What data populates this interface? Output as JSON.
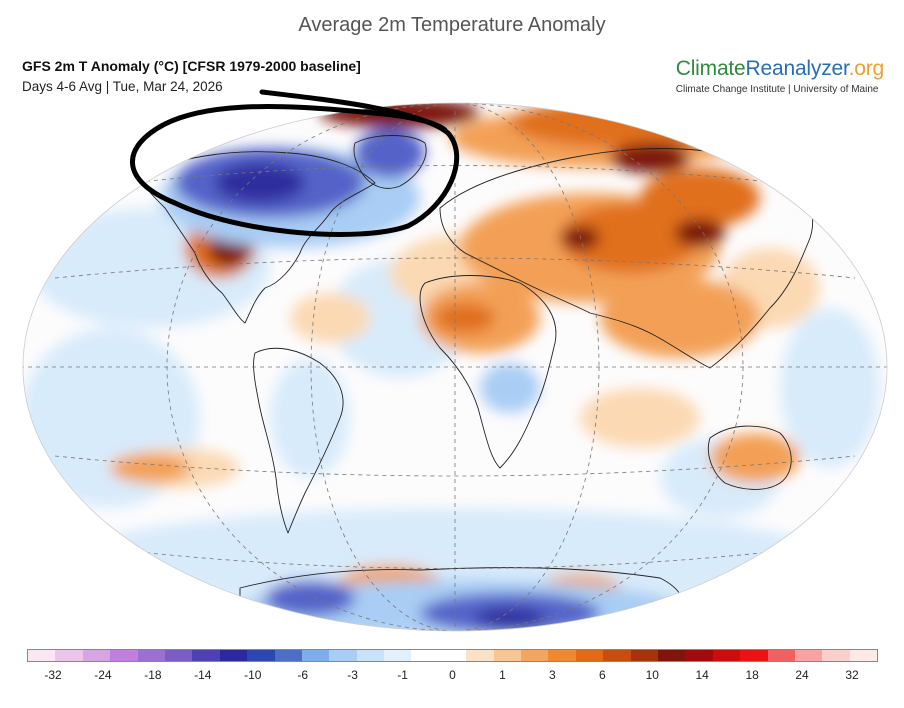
{
  "title": "Average 2m Temperature Anomaly",
  "subtitle_line1": "GFS 2m T Anomaly (°C) [CFSR 1979-2000 baseline]",
  "subtitle_line2": "Days 4-6 Avg | Tue, Mar 24, 2026",
  "logo": {
    "part1": "Climate",
    "part2": "Reanalyzer",
    "part3": ".org",
    "subtitle": "Climate Change Institute | University of Maine",
    "color_part1": "#2e8b3e",
    "color_part2": "#2a6db5",
    "color_part3": "#f0a030"
  },
  "annotation": {
    "type": "hand-drawn ellipse",
    "encircles": "North America / Canada / Greenland cold anomaly",
    "color": "#000000"
  },
  "colorbar": {
    "colors": [
      "#fbe6f3",
      "#ecc6ea",
      "#d7a5e3",
      "#c07fdc",
      "#9c6fd2",
      "#7a5ec7",
      "#5041b3",
      "#2a2a9e",
      "#2d47b0",
      "#4c6ec6",
      "#7eadea",
      "#a9cdf4",
      "#c9e2fa",
      "#e2f0fc",
      "#ffffff",
      "#ffffff",
      "#fbe1c7",
      "#f8c594",
      "#f4a461",
      "#ef8830",
      "#e26a14",
      "#c94d0c",
      "#a6340a",
      "#80150c",
      "#a20b0b",
      "#cc0d0d",
      "#e81414",
      "#f06262",
      "#f7a3a3",
      "#fbd0cb",
      "#fdeae6"
    ],
    "tick_labels": [
      "-32",
      "-24",
      "-18",
      "-14",
      "-10",
      "-6",
      "-3",
      "-1",
      "0",
      "1",
      "3",
      "6",
      "10",
      "14",
      "18",
      "24",
      "32"
    ]
  },
  "map_colors": {
    "ocean_base": "#fdfcfd",
    "light_blue": "#d8ebfb",
    "mid_blue": "#a9cdf4",
    "deep_blue": "#5563c9",
    "navy": "#2f2f9e",
    "light_orange": "#fbd9b3",
    "orange": "#f3a056",
    "dark_orange": "#e0701e",
    "brown_red": "#a6340a",
    "dark_red": "#7c1208",
    "outline": "#222222"
  }
}
